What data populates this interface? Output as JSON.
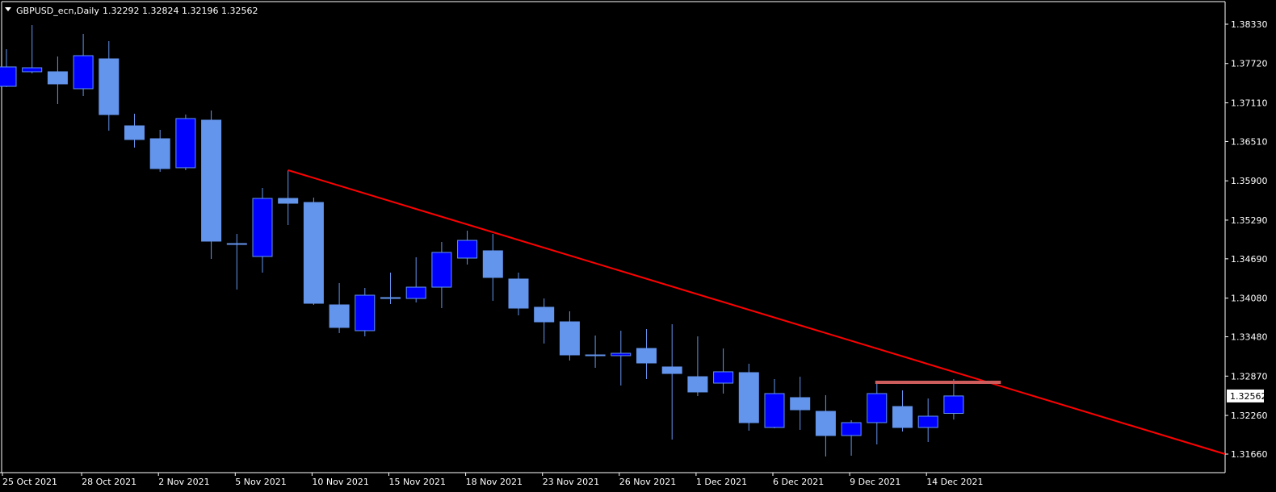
{
  "header": {
    "symbol_label": "GBPUSD_ecn,Daily",
    "ohlc_label": "1.32292 1.32824 1.32196 1.32562",
    "menu_icon": "triangle-down-icon"
  },
  "colors": {
    "background": "#000000",
    "bull_fill": "#0000ff",
    "bear_fill": "#6495ed",
    "wick": "#6495ed",
    "trendline": "#ff0000",
    "horizontal_line": "#cd5c5c",
    "axis": "#ffffff"
  },
  "chart_data": {
    "type": "candlestick",
    "title": "GBPUSD_ecn,Daily",
    "ylim": [
      1.3166,
      1.3833
    ],
    "grid": false,
    "y_ticks": [
      "1.38330",
      "1.37720",
      "1.37110",
      "1.36510",
      "1.35900",
      "1.35290",
      "1.34690",
      "1.34080",
      "1.33480",
      "1.32870",
      "1.32260",
      "1.31660"
    ],
    "x_tick_labels": [
      {
        "bar": 0,
        "label": "25 Oct 2021"
      },
      {
        "bar": 3,
        "label": "28 Oct 2021"
      },
      {
        "bar": 6,
        "label": "2 Nov 2021"
      },
      {
        "bar": 9,
        "label": "5 Nov 2021"
      },
      {
        "bar": 12,
        "label": "10 Nov 2021"
      },
      {
        "bar": 15,
        "label": "15 Nov 2021"
      },
      {
        "bar": 18,
        "label": "18 Nov 2021"
      },
      {
        "bar": 21,
        "label": "23 Nov 2021"
      },
      {
        "bar": 24,
        "label": "26 Nov 2021"
      },
      {
        "bar": 27,
        "label": "1 Dec 2021"
      },
      {
        "bar": 30,
        "label": "6 Dec 2021"
      },
      {
        "bar": 33,
        "label": "9 Dec 2021"
      },
      {
        "bar": 36,
        "label": "14 Dec 2021"
      }
    ],
    "current_price": "1.32562",
    "candles": [
      {
        "o": 1.37366,
        "h": 1.37942,
        "l": 1.37354,
        "c": 1.37667
      },
      {
        "o": 1.37592,
        "h": 1.38317,
        "l": 1.37567,
        "c": 1.37654
      },
      {
        "o": 1.37592,
        "h": 1.37829,
        "l": 1.37091,
        "c": 1.37404
      },
      {
        "o": 1.37329,
        "h": 1.3818,
        "l": 1.37216,
        "c": 1.37842
      },
      {
        "o": 1.37792,
        "h": 1.38067,
        "l": 1.36678,
        "c": 1.36928
      },
      {
        "o": 1.36753,
        "h": 1.36941,
        "l": 1.36415,
        "c": 1.36541
      },
      {
        "o": 1.36553,
        "h": 1.36691,
        "l": 1.3604,
        "c": 1.3609
      },
      {
        "o": 1.36103,
        "h": 1.36928,
        "l": 1.36065,
        "c": 1.36866
      },
      {
        "o": 1.36841,
        "h": 1.36991,
        "l": 1.34688,
        "c": 1.34964
      },
      {
        "o": 1.34926,
        "h": 1.35076,
        "l": 1.34213,
        "c": 1.34914
      },
      {
        "o": 1.34726,
        "h": 1.3579,
        "l": 1.34476,
        "c": 1.35627
      },
      {
        "o": 1.35627,
        "h": 1.36065,
        "l": 1.35214,
        "c": 1.35552
      },
      {
        "o": 1.35564,
        "h": 1.3564,
        "l": 1.33975,
        "c": 1.34
      },
      {
        "o": 1.33975,
        "h": 1.34313,
        "l": 1.33537,
        "c": 1.33625
      },
      {
        "o": 1.33575,
        "h": 1.34238,
        "l": 1.33487,
        "c": 1.34125
      },
      {
        "o": 1.34088,
        "h": 1.34476,
        "l": 1.33988,
        "c": 1.34075
      },
      {
        "o": 1.34075,
        "h": 1.34714,
        "l": 1.34013,
        "c": 1.3425
      },
      {
        "o": 1.3425,
        "h": 1.34951,
        "l": 1.33925,
        "c": 1.34789
      },
      {
        "o": 1.34701,
        "h": 1.35126,
        "l": 1.34601,
        "c": 1.34976
      },
      {
        "o": 1.34814,
        "h": 1.35076,
        "l": 1.34038,
        "c": 1.34401
      },
      {
        "o": 1.34376,
        "h": 1.34476,
        "l": 1.33812,
        "c": 1.33925
      },
      {
        "o": 1.33938,
        "h": 1.34075,
        "l": 1.33375,
        "c": 1.33712
      },
      {
        "o": 1.33712,
        "h": 1.33875,
        "l": 1.33112,
        "c": 1.33199
      },
      {
        "o": 1.33199,
        "h": 1.335,
        "l": 1.32999,
        "c": 1.33187
      },
      {
        "o": 1.33187,
        "h": 1.33575,
        "l": 1.32724,
        "c": 1.33224
      },
      {
        "o": 1.33299,
        "h": 1.336,
        "l": 1.32824,
        "c": 1.33074
      },
      {
        "o": 1.33012,
        "h": 1.33675,
        "l": 1.31885,
        "c": 1.32911
      },
      {
        "o": 1.32861,
        "h": 1.33487,
        "l": 1.32561,
        "c": 1.32624
      },
      {
        "o": 1.32761,
        "h": 1.33299,
        "l": 1.32599,
        "c": 1.32937
      },
      {
        "o": 1.32924,
        "h": 1.33062,
        "l": 1.32023,
        "c": 1.32148
      },
      {
        "o": 1.32073,
        "h": 1.32824,
        "l": 1.32061,
        "c": 1.32599
      },
      {
        "o": 1.32536,
        "h": 1.32861,
        "l": 1.32036,
        "c": 1.32348
      },
      {
        "o": 1.32323,
        "h": 1.32574,
        "l": 1.31623,
        "c": 1.31948
      },
      {
        "o": 1.31948,
        "h": 1.32186,
        "l": 1.31635,
        "c": 1.32148
      },
      {
        "o": 1.32148,
        "h": 1.32799,
        "l": 1.3181,
        "c": 1.32599
      },
      {
        "o": 1.32398,
        "h": 1.32649,
        "l": 1.3201,
        "c": 1.32073
      },
      {
        "o": 1.32073,
        "h": 1.32523,
        "l": 1.31848,
        "c": 1.32248
      },
      {
        "o": 1.32292,
        "h": 1.32824,
        "l": 1.32196,
        "c": 1.32562
      }
    ],
    "trendline": {
      "start": {
        "date": "8 Nov 2021",
        "price": 1.36065
      },
      "end": {
        "price": 1.3166,
        "at": "right-edge"
      }
    },
    "horizontal_line": {
      "start_date": "10 Dec 2021",
      "price": 1.32774,
      "bars": 5
    }
  }
}
